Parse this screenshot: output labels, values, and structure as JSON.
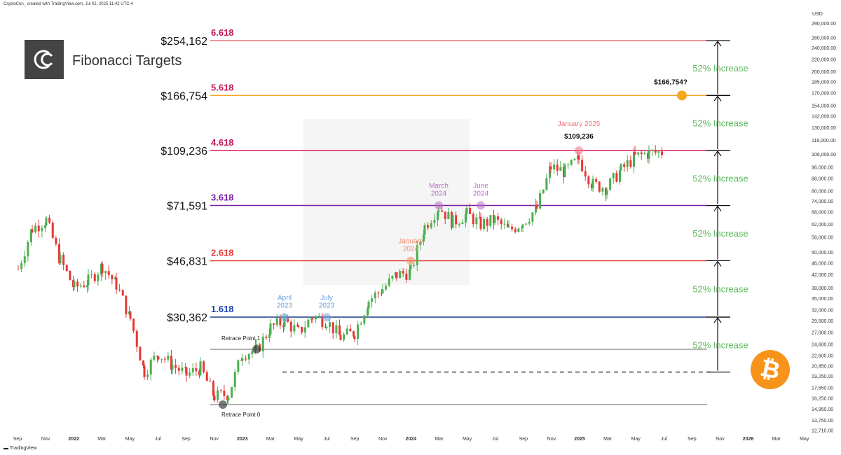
{
  "header_text": "CryptoCon_ created with TradingView.com, Jul 02, 2025 11:42 UTC-4",
  "footer_text": "TradingView",
  "logo_label": "Fibonacci Targets",
  "currency": "USD",
  "btc_symbol": "₿",
  "colors": {
    "up": "#4caf50",
    "down": "#e53935",
    "increase_text": "#5cb85c",
    "orange": "#f5a623"
  },
  "chart_data": {
    "type": "candlestick",
    "title": "Fibonacci Targets",
    "y_scale": "log",
    "ylim": [
      12000,
      300000
    ],
    "y_ticks": [
      290000,
      260000,
      240000,
      220000,
      200000,
      185000,
      170000,
      154000,
      142000,
      130000,
      118000,
      106000,
      96000,
      88000,
      80000,
      74000,
      68000,
      62000,
      56000,
      50000,
      46000,
      42000,
      38000,
      35000,
      32000,
      29500,
      27000,
      24600,
      22600,
      20850,
      19250,
      17650,
      16250,
      14950,
      13750,
      12710
    ],
    "y_tick_labels": [
      "290,000.00",
      "260,000.00",
      "240,000.00",
      "220,000.00",
      "200,000.00",
      "185,000.00",
      "170,000.00",
      "154,000.00",
      "142,000.00",
      "130,000.00",
      "118,000.00",
      "106,000.00",
      "96,000.00",
      "88,000.00",
      "80,000.00",
      "74,000.00",
      "68,000.00",
      "62,000.00",
      "56,000.00",
      "50,000.00",
      "46,000.00",
      "42,000.00",
      "38,000.00",
      "35,000.00",
      "32,000.00",
      "29,500.00",
      "27,000.00",
      "24,600.00",
      "22,600.00",
      "20,850.00",
      "19,250.00",
      "17,650.00",
      "16,250.00",
      "14,950.00",
      "13,750.00",
      "12,710.00"
    ],
    "x_ticks": [
      "Sep",
      "Nov",
      "2022",
      "Mar",
      "May",
      "Jul",
      "Sep",
      "Nov",
      "2023",
      "Mar",
      "May",
      "Jul",
      "Sep",
      "Nov",
      "2024",
      "Mar",
      "May",
      "Jul",
      "Sep",
      "Nov",
      "2025",
      "Mar",
      "May",
      "Jul",
      "Sep",
      "Nov",
      "2026",
      "Mar",
      "May"
    ],
    "x_start": "2021-09",
    "fib_levels": [
      {
        "ratio": "6.618",
        "price": 254162,
        "label": "$254,162",
        "line_color": "#e57373",
        "text_color": "#c2185b"
      },
      {
        "ratio": "5.618",
        "price": 166754,
        "label": "$166,754",
        "line_color": "#f5a623",
        "text_color": "#c2185b"
      },
      {
        "ratio": "4.618",
        "price": 109236,
        "label": "$109,236",
        "line_color": "#d81b60",
        "text_color": "#c2185b"
      },
      {
        "ratio": "3.618",
        "price": 71591,
        "label": "$71,591",
        "line_color": "#7b1fa2",
        "text_color": "#7b1fa2"
      },
      {
        "ratio": "2.618",
        "price": 46831,
        "label": "$46,831",
        "line_color": "#e53935",
        "text_color": "#e53935"
      },
      {
        "ratio": "1.618",
        "price": 30362,
        "label": "$30,362",
        "line_color": "#1e3a8a",
        "text_color": "#1e40af"
      }
    ],
    "retrace_levels": [
      {
        "name": "Retrace Point 1",
        "price": 23700
      },
      {
        "name": "Retrace Point 0",
        "price": 15500
      }
    ],
    "dashed_level": 19900,
    "increase_label": "52% Increase",
    "increase_count": 6,
    "annotations": [
      {
        "text": [
          "April",
          "2023"
        ],
        "date": "2023-04",
        "price": 30300,
        "color": "#6ca0dc"
      },
      {
        "text": [
          "July",
          "2023"
        ],
        "date": "2023-07",
        "price": 30300,
        "color": "#6ca0dc"
      },
      {
        "text": [
          "January",
          "2024"
        ],
        "date": "2024-01",
        "price": 46800,
        "color": "#f08c6c"
      },
      {
        "text": [
          "March",
          "2024"
        ],
        "date": "2024-03",
        "price": 71591,
        "color": "#b86bc8"
      },
      {
        "text": [
          "June",
          "2024"
        ],
        "date": "2024-06",
        "price": 71591,
        "color": "#b86bc8"
      },
      {
        "text": [
          "January 2025"
        ],
        "date": "2025-01",
        "price": 109236,
        "color": "#f07080",
        "value": "$109,236"
      }
    ],
    "target_label": "$166,754?",
    "price_path": [
      [
        "2021-09",
        44000
      ],
      [
        "2021-10",
        60000
      ],
      [
        "2021-11",
        64000
      ],
      [
        "2021-12",
        47000
      ],
      [
        "2022-01",
        38000
      ],
      [
        "2022-02",
        40000
      ],
      [
        "2022-03",
        45000
      ],
      [
        "2022-04",
        39000
      ],
      [
        "2022-05",
        30000
      ],
      [
        "2022-06",
        20000
      ],
      [
        "2022-07",
        23000
      ],
      [
        "2022-08",
        21000
      ],
      [
        "2022-09",
        19500
      ],
      [
        "2022-10",
        20500
      ],
      [
        "2022-11",
        16500
      ],
      [
        "2022-12",
        16800
      ],
      [
        "2023-01",
        23000
      ],
      [
        "2023-02",
        23500
      ],
      [
        "2023-03",
        28000
      ],
      [
        "2023-04",
        29500
      ],
      [
        "2023-05",
        27000
      ],
      [
        "2023-06",
        30500
      ],
      [
        "2023-07",
        29500
      ],
      [
        "2023-08",
        26000
      ],
      [
        "2023-09",
        27000
      ],
      [
        "2023-10",
        34500
      ],
      [
        "2023-11",
        37700
      ],
      [
        "2023-12",
        42000
      ],
      [
        "2024-01",
        43000
      ],
      [
        "2024-02",
        61000
      ],
      [
        "2024-03",
        71000
      ],
      [
        "2024-04",
        63000
      ],
      [
        "2024-05",
        67000
      ],
      [
        "2024-06",
        62000
      ],
      [
        "2024-07",
        64000
      ],
      [
        "2024-08",
        59000
      ],
      [
        "2024-09",
        63000
      ],
      [
        "2024-10",
        70000
      ],
      [
        "2024-11",
        96000
      ],
      [
        "2024-12",
        93000
      ],
      [
        "2025-01",
        102000
      ],
      [
        "2025-02",
        84000
      ],
      [
        "2025-03",
        82000
      ],
      [
        "2025-04",
        94000
      ],
      [
        "2025-05",
        104000
      ],
      [
        "2025-06",
        107000
      ],
      [
        "2025-07",
        108000
      ]
    ]
  }
}
